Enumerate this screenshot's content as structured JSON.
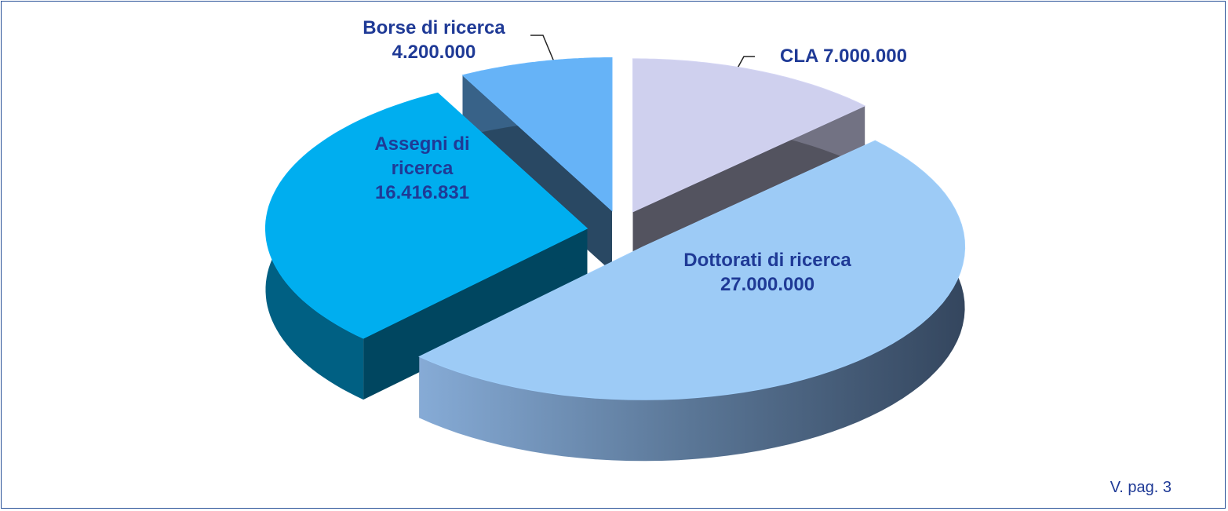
{
  "chart_data": {
    "type": "pie3d",
    "categories": [
      "CLA",
      "Dottorati di ricerca",
      "Assegni di ricerca",
      "Borse di ricerca"
    ],
    "values": [
      7000000,
      27000000,
      16416831,
      4200000
    ],
    "value_labels": [
      "7.000.000",
      "27.000.000",
      "16.416.831",
      "4.200.000"
    ],
    "colors": [
      "#cfd0ee",
      "#9dcbf6",
      "#00aeef",
      "#66b3f7"
    ],
    "note": "V. pag. 3"
  }
}
